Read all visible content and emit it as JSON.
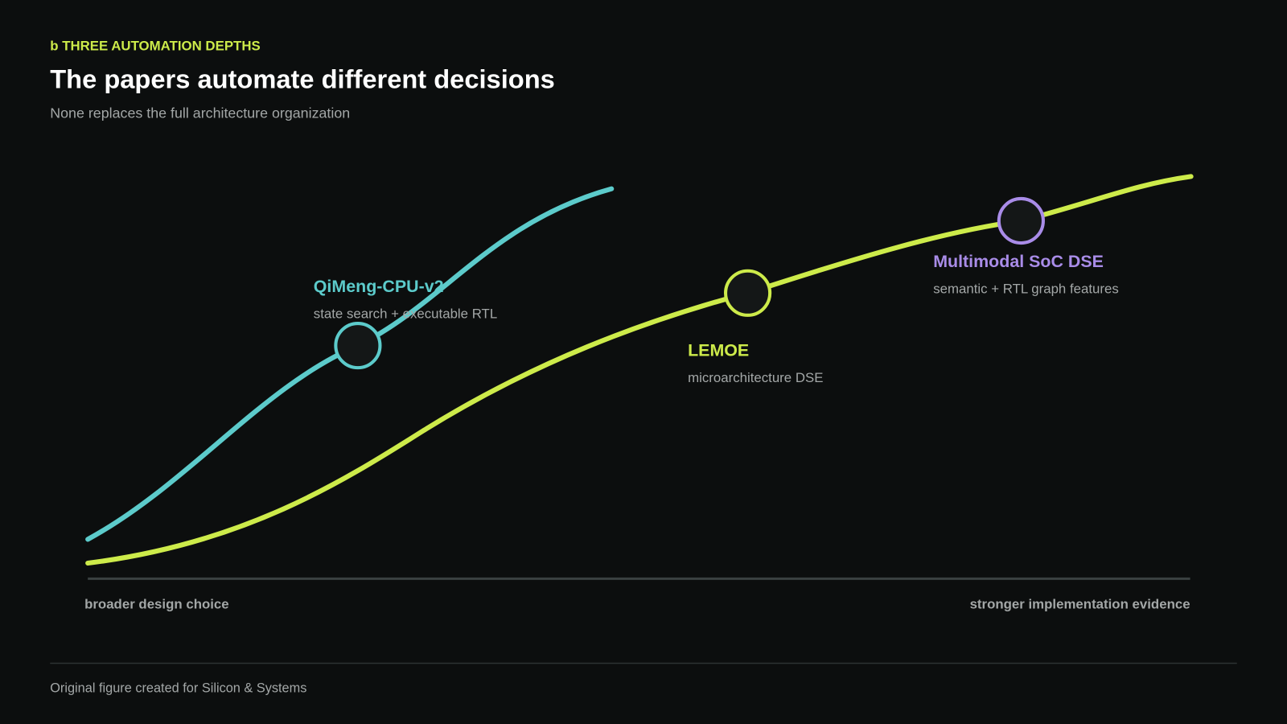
{
  "header": {
    "kicker": "b THREE AUTOMATION DEPTHS",
    "title": "The papers automate different decisions",
    "subtitle": "None replaces the full architecture organization"
  },
  "nodes": [
    {
      "label": "QiMeng-CPU-v2",
      "description": "state search + executable RTL"
    },
    {
      "label": "LEMOE",
      "description": "microarchitecture DSE"
    },
    {
      "label": "Multimodal SoC DSE",
      "description": "semantic + RTL graph features"
    }
  ],
  "axis": {
    "left": "broader design choice",
    "right": "stronger implementation evidence"
  },
  "footer": "Original figure created for Silicon & Systems"
}
